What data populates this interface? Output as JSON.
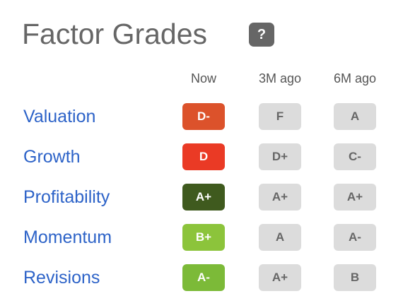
{
  "header": {
    "title": "Factor Grades",
    "help": "?"
  },
  "table": {
    "columns": [
      "Now",
      "3M ago",
      "6M ago"
    ],
    "rows": [
      {
        "factor": "Valuation",
        "grades": [
          "D-",
          "F",
          "A"
        ],
        "color": "#dc522b"
      },
      {
        "factor": "Growth",
        "grades": [
          "D",
          "D+",
          "C-"
        ],
        "color": "#ea3a25"
      },
      {
        "factor": "Profitability",
        "grades": [
          "A+",
          "A+",
          "A+"
        ],
        "color": "#3f5a1e"
      },
      {
        "factor": "Momentum",
        "grades": [
          "B+",
          "A",
          "A-"
        ],
        "color": "#8cc43b"
      },
      {
        "factor": "Revisions",
        "grades": [
          "A-",
          "A+",
          "B"
        ],
        "color": "#7cba38"
      }
    ]
  }
}
